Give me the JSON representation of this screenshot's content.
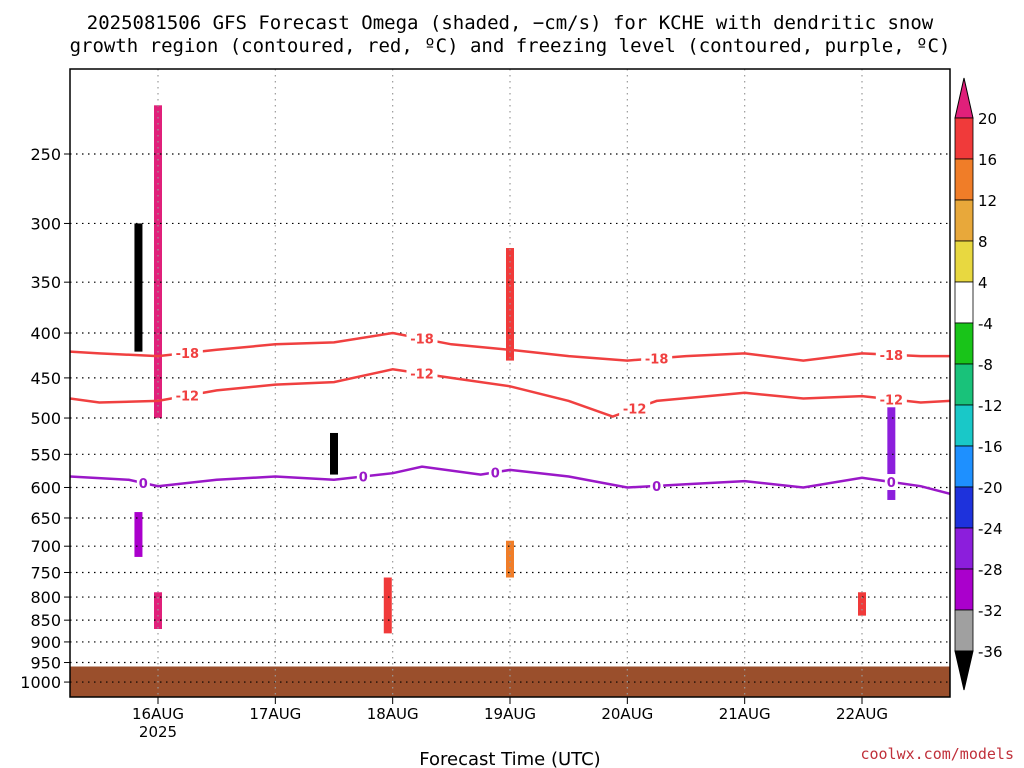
{
  "title_line1": "2025081506 GFS Forecast Omega (shaded, −cm/s) for KCHE with dendritic snow",
  "title_line2": "growth region (contoured, red, ºC) and freezing level (contoured, purple, ºC)",
  "xlabel": "Forecast Time (UTC)",
  "watermark": "coolwx.com/models",
  "chart_data": {
    "type": "heatmap",
    "title": "2025081506 GFS Forecast Omega (shaded, −cm/s) for KCHE with dendritic snow growth region (contoured, red, ºC) and freezing level (contoured, purple, ºC)",
    "xlabel": "Forecast Time (UTC)",
    "ylabel": "",
    "y_scale": "log",
    "y_ticks": [
      250,
      300,
      350,
      400,
      450,
      500,
      550,
      600,
      650,
      700,
      750,
      800,
      850,
      900,
      950,
      1000
    ],
    "y_range": [
      200,
      1040
    ],
    "x_ticks": [
      {
        "label": "16AUG",
        "sublabel": "2025",
        "t": "2025-08-16T00"
      },
      {
        "label": "17AUG",
        "sublabel": "",
        "t": "2025-08-17T00"
      },
      {
        "label": "18AUG",
        "sublabel": "",
        "t": "2025-08-18T00"
      },
      {
        "label": "19AUG",
        "sublabel": "",
        "t": "2025-08-19T00"
      },
      {
        "label": "20AUG",
        "sublabel": "",
        "t": "2025-08-20T00"
      },
      {
        "label": "21AUG",
        "sublabel": "",
        "t": "2025-08-21T00"
      },
      {
        "label": "22AUG",
        "sublabel": "",
        "t": "2025-08-22T00"
      }
    ],
    "x_range": [
      "2025-08-15T06",
      "2025-08-22T18"
    ],
    "grid": true,
    "surface_pressure_hPa": 960,
    "colorbar": {
      "labels": [
        "20",
        "16",
        "12",
        "8",
        "4",
        "-4",
        "-8",
        "-12",
        "-16",
        "-20",
        "-24",
        "-28",
        "-32",
        "-36"
      ],
      "bands": [
        {
          "lo": 20,
          "hi": null,
          "color": "#e0207a"
        },
        {
          "lo": 16,
          "hi": 20,
          "color": "#f03a3a"
        },
        {
          "lo": 12,
          "hi": 16,
          "color": "#f07d28"
        },
        {
          "lo": 8,
          "hi": 12,
          "color": "#e8a83a"
        },
        {
          "lo": 4,
          "hi": 8,
          "color": "#e8d840"
        },
        {
          "lo": -4,
          "hi": 4,
          "color": "#ffffff"
        },
        {
          "lo": -8,
          "hi": -4,
          "color": "#19c419"
        },
        {
          "lo": -12,
          "hi": -8,
          "color": "#19c27a"
        },
        {
          "lo": -16,
          "hi": -12,
          "color": "#19c8c8"
        },
        {
          "lo": -20,
          "hi": -16,
          "color": "#1e90ff"
        },
        {
          "lo": -24,
          "hi": -20,
          "color": "#1e32dc"
        },
        {
          "lo": -28,
          "hi": -24,
          "color": "#8c1edc"
        },
        {
          "lo": -32,
          "hi": -28,
          "color": "#aa00cc"
        },
        {
          "lo": -36,
          "hi": -32,
          "color": "#a0a0a0"
        },
        {
          "lo": null,
          "hi": -36,
          "color": "#000000"
        }
      ]
    },
    "omega_features": [
      {
        "t": "2025-08-15T20",
        "p": [
          300,
          420
        ],
        "value": -40
      },
      {
        "t": "2025-08-15T20",
        "p": [
          640,
          720
        ],
        "value": -30
      },
      {
        "t": "2025-08-16T00",
        "p": [
          220,
          500
        ],
        "value": 20
      },
      {
        "t": "2025-08-16T00",
        "p": [
          790,
          870
        ],
        "value": 20
      },
      {
        "t": "2025-08-17T12",
        "p": [
          520,
          580
        ],
        "value": -40
      },
      {
        "t": "2025-08-17T23",
        "p": [
          760,
          880
        ],
        "value": 18
      },
      {
        "t": "2025-08-19T00",
        "p": [
          320,
          430
        ],
        "value": 18
      },
      {
        "t": "2025-08-19T00",
        "p": [
          690,
          760
        ],
        "value": 12
      },
      {
        "t": "2025-08-22T00",
        "p": [
          790,
          840
        ],
        "value": 16
      },
      {
        "t": "2025-08-22T06",
        "p": [
          480,
          620
        ],
        "value": -26
      }
    ],
    "contours": [
      {
        "level": -18,
        "color": "#f04040",
        "labels": [
          "-18",
          "-18",
          "-18",
          "-18"
        ],
        "points": [
          [
            "2025-08-15T06",
            420
          ],
          [
            "2025-08-15T12",
            422
          ],
          [
            "2025-08-16T00",
            425
          ],
          [
            "2025-08-16T12",
            418
          ],
          [
            "2025-08-17T00",
            412
          ],
          [
            "2025-08-17T12",
            410
          ],
          [
            "2025-08-18T00",
            400
          ],
          [
            "2025-08-18T12",
            412
          ],
          [
            "2025-08-19T00",
            418
          ],
          [
            "2025-08-19T12",
            425
          ],
          [
            "2025-08-20T00",
            430
          ],
          [
            "2025-08-20T12",
            425
          ],
          [
            "2025-08-21T00",
            422
          ],
          [
            "2025-08-21T12",
            430
          ],
          [
            "2025-08-22T00",
            422
          ],
          [
            "2025-08-22T12",
            425
          ],
          [
            "2025-08-22T18",
            425
          ]
        ]
      },
      {
        "level": -12,
        "color": "#f04040",
        "labels": [
          "-12",
          "-12",
          "-12",
          "-12"
        ],
        "points": [
          [
            "2025-08-15T06",
            475
          ],
          [
            "2025-08-15T12",
            480
          ],
          [
            "2025-08-16T00",
            478
          ],
          [
            "2025-08-16T12",
            465
          ],
          [
            "2025-08-17T00",
            458
          ],
          [
            "2025-08-17T12",
            455
          ],
          [
            "2025-08-18T00",
            440
          ],
          [
            "2025-08-18T12",
            450
          ],
          [
            "2025-08-19T00",
            460
          ],
          [
            "2025-08-19T12",
            478
          ],
          [
            "2025-08-19T21",
            498
          ],
          [
            "2025-08-20T06",
            478
          ],
          [
            "2025-08-21T00",
            468
          ],
          [
            "2025-08-21T12",
            475
          ],
          [
            "2025-08-22T00",
            472
          ],
          [
            "2025-08-22T12",
            480
          ],
          [
            "2025-08-22T18",
            478
          ]
        ]
      },
      {
        "level": 0,
        "color": "#9a18c8",
        "labels": [
          "0",
          "0",
          "0",
          "0",
          "0"
        ],
        "points": [
          [
            "2025-08-15T06",
            583
          ],
          [
            "2025-08-15T18",
            588
          ],
          [
            "2025-08-16T00",
            598
          ],
          [
            "2025-08-16T12",
            588
          ],
          [
            "2025-08-17T00",
            583
          ],
          [
            "2025-08-17T12",
            588
          ],
          [
            "2025-08-18T00",
            578
          ],
          [
            "2025-08-18T06",
            568
          ],
          [
            "2025-08-18T18",
            580
          ],
          [
            "2025-08-19T00",
            573
          ],
          [
            "2025-08-19T12",
            583
          ],
          [
            "2025-08-20T00",
            600
          ],
          [
            "2025-08-20T12",
            595
          ],
          [
            "2025-08-21T00",
            590
          ],
          [
            "2025-08-21T12",
            600
          ],
          [
            "2025-08-22T00",
            585
          ],
          [
            "2025-08-22T12",
            598
          ],
          [
            "2025-08-22T18",
            610
          ]
        ]
      }
    ]
  }
}
